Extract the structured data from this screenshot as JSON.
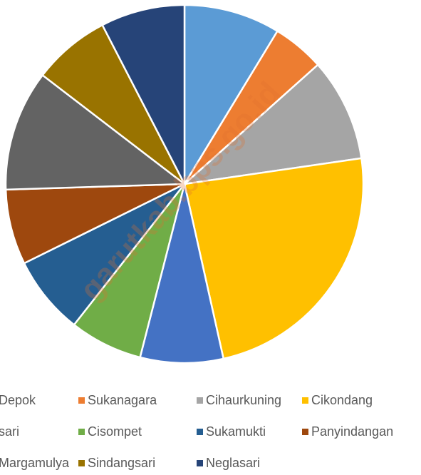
{
  "chart_data": {
    "type": "pie",
    "categories": [
      "Depok",
      "Sukanagara",
      "Cihaurkuning",
      "Cikondang",
      "Jatisari",
      "Cisompet",
      "Sukamukti",
      "Panyindangan",
      "Margamulya",
      "Sindangsari",
      "Neglasari"
    ],
    "values": [
      8.7,
      4.7,
      9.3,
      23.8,
      7.5,
      6.6,
      7.1,
      6.8,
      10.9,
      7.0,
      7.6
    ],
    "colors": [
      "#5b9bd5",
      "#ed7d31",
      "#a5a5a5",
      "#ffc000",
      "#4472c4",
      "#70ad47",
      "#255e91",
      "#9e480e",
      "#636363",
      "#997300",
      "#264478"
    ],
    "watermark": "garutkab.bps.go.id"
  }
}
